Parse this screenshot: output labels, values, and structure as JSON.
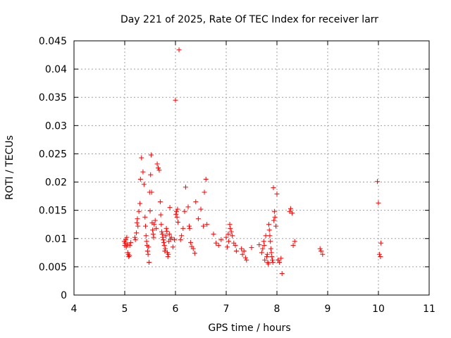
{
  "chart_data": {
    "type": "scatter",
    "title": "Day 221 of 2025, Rate Of TEC Index for receiver larr",
    "xlabel": "GPS time / hours",
    "ylabel": "ROTI / TECUs",
    "xlim": [
      4,
      11
    ],
    "ylim": [
      0,
      0.045
    ],
    "xticks": [
      4,
      5,
      6,
      7,
      8,
      9,
      10,
      11
    ],
    "xtick_labels": [
      "4",
      "5",
      "6",
      "7",
      "8",
      "9",
      "10",
      "11"
    ],
    "yticks": [
      0,
      0.005,
      0.01,
      0.015,
      0.02,
      0.025,
      0.03,
      0.035,
      0.04,
      0.045
    ],
    "ytick_labels": [
      "0",
      "0.005",
      "0.01",
      "0.015",
      "0.02",
      "0.025",
      "0.03",
      "0.035",
      "0.04",
      "0.045"
    ],
    "grid": true,
    "marker": "+",
    "marker_color": "#ff0000",
    "series": [
      {
        "name": "ROTI",
        "x": [
          4.99,
          5.0,
          5.01,
          5.02,
          5.03,
          5.04,
          5.05,
          5.06,
          5.07,
          5.08,
          5.09,
          5.1,
          5.12,
          5.2,
          5.21,
          5.23,
          5.24,
          5.25,
          5.26,
          5.28,
          5.3,
          5.31,
          5.33,
          5.36,
          5.38,
          5.4,
          5.41,
          5.42,
          5.43,
          5.44,
          5.45,
          5.46,
          5.47,
          5.48,
          5.49,
          5.5,
          5.51,
          5.52,
          5.53,
          5.54,
          5.55,
          5.56,
          5.57,
          5.58,
          5.6,
          5.62,
          5.64,
          5.66,
          5.68,
          5.7,
          5.71,
          5.72,
          5.73,
          5.74,
          5.75,
          5.76,
          5.77,
          5.78,
          5.79,
          5.8,
          5.81,
          5.82,
          5.83,
          5.84,
          5.85,
          5.86,
          5.87,
          5.88,
          5.89,
          5.9,
          5.92,
          5.95,
          5.98,
          6.0,
          6.01,
          6.02,
          6.03,
          6.04,
          6.05,
          6.07,
          6.1,
          6.12,
          6.15,
          6.18,
          6.2,
          6.25,
          6.27,
          6.28,
          6.3,
          6.32,
          6.35,
          6.38,
          6.4,
          6.45,
          6.5,
          6.55,
          6.57,
          6.6,
          6.62,
          6.75,
          6.8,
          6.85,
          6.9,
          7.0,
          7.02,
          7.04,
          7.05,
          7.07,
          7.08,
          7.1,
          7.12,
          7.15,
          7.18,
          7.2,
          7.3,
          7.32,
          7.35,
          7.38,
          7.4,
          7.5,
          7.65,
          7.7,
          7.72,
          7.74,
          7.75,
          7.76,
          7.78,
          7.8,
          7.81,
          7.82,
          7.83,
          7.84,
          7.85,
          7.86,
          7.87,
          7.88,
          7.89,
          7.9,
          7.91,
          7.92,
          7.93,
          7.94,
          7.95,
          7.96,
          7.98,
          8.0,
          8.02,
          8.05,
          8.08,
          8.1,
          8.25,
          8.27,
          8.3,
          8.32,
          8.35,
          8.85,
          8.87,
          8.9,
          9.98,
          10.0,
          10.02,
          10.04,
          10.05
        ],
        "y": [
          0.0095,
          0.0088,
          0.0092,
          0.0098,
          0.0085,
          0.0102,
          0.009,
          0.0075,
          0.0072,
          0.0068,
          0.007,
          0.0088,
          0.0093,
          0.0102,
          0.0098,
          0.011,
          0.0128,
          0.0135,
          0.0122,
          0.0148,
          0.0162,
          0.0205,
          0.0243,
          0.0218,
          0.0196,
          0.0138,
          0.0122,
          0.0105,
          0.0095,
          0.0088,
          0.0078,
          0.0072,
          0.0085,
          0.0058,
          0.0182,
          0.0149,
          0.0213,
          0.0248,
          0.0182,
          0.0128,
          0.0115,
          0.0108,
          0.0102,
          0.0125,
          0.0132,
          0.0118,
          0.0232,
          0.0225,
          0.0221,
          0.0165,
          0.0142,
          0.0125,
          0.0112,
          0.0108,
          0.0102,
          0.0098,
          0.0093,
          0.0088,
          0.0078,
          0.0082,
          0.0105,
          0.0118,
          0.0113,
          0.0075,
          0.0068,
          0.0072,
          0.0095,
          0.0108,
          0.0155,
          0.0099,
          0.0102,
          0.0085,
          0.0098,
          0.0345,
          0.0143,
          0.0148,
          0.0138,
          0.0152,
          0.0129,
          0.0434,
          0.0098,
          0.0105,
          0.0118,
          0.0148,
          0.0191,
          0.0156,
          0.0122,
          0.0118,
          0.0093,
          0.0086,
          0.0082,
          0.0074,
          0.0165,
          0.0135,
          0.0152,
          0.0122,
          0.0182,
          0.0205,
          0.0125,
          0.0108,
          0.0092,
          0.0088,
          0.0098,
          0.0102,
          0.0085,
          0.0108,
          0.0095,
          0.0125,
          0.0118,
          0.0112,
          0.0105,
          0.0092,
          0.0088,
          0.0078,
          0.0082,
          0.0072,
          0.0078,
          0.0066,
          0.0062,
          0.0084,
          0.0089,
          0.0075,
          0.0082,
          0.0095,
          0.0088,
          0.0062,
          0.0105,
          0.0068,
          0.0072,
          0.0058,
          0.0055,
          0.0125,
          0.0115,
          0.0105,
          0.0095,
          0.0082,
          0.0075,
          0.0068,
          0.0062,
          0.0058,
          0.019,
          0.0132,
          0.0148,
          0.0138,
          0.0122,
          0.0179,
          0.0062,
          0.0058,
          0.0065,
          0.0038,
          0.0148,
          0.0153,
          0.0145,
          0.0088,
          0.0095,
          0.0082,
          0.0078,
          0.0072,
          0.0201,
          0.0163,
          0.0072,
          0.0068,
          0.0092
        ]
      }
    ]
  }
}
